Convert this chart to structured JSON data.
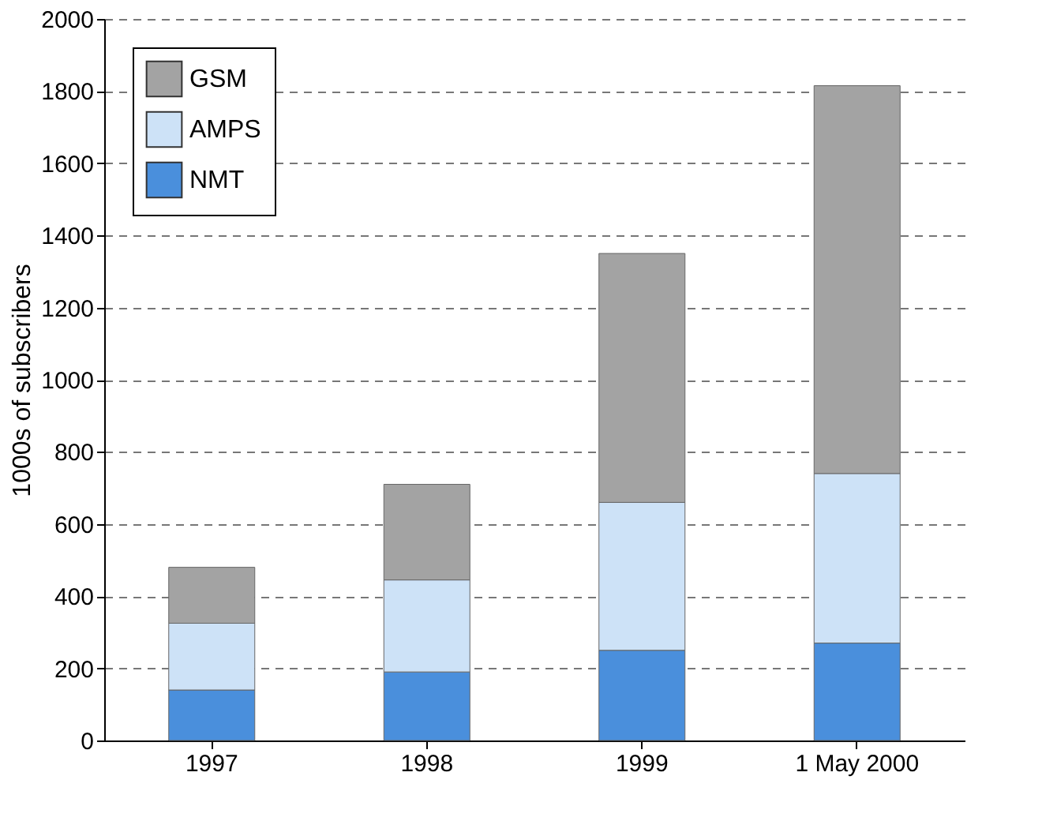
{
  "chart_data": {
    "type": "bar",
    "stacked": true,
    "ylabel": "1000s of subscribers",
    "categories": [
      "1997",
      "1998",
      "1999",
      "1 May 2000"
    ],
    "series": [
      {
        "name": "NMT",
        "color": "#4a8fdc",
        "values": [
          140,
          190,
          250,
          270
        ]
      },
      {
        "name": "AMPS",
        "color": "#cde2f7",
        "values": [
          185,
          255,
          410,
          470
        ]
      },
      {
        "name": "GSM",
        "color": "#a3a3a3",
        "values": [
          155,
          265,
          690,
          1075
        ]
      }
    ],
    "ylim": [
      0,
      2000
    ],
    "yticks": [
      0,
      200,
      400,
      600,
      800,
      1000,
      1200,
      1400,
      1600,
      1800,
      2000
    ],
    "grid": "y",
    "legend": "top left"
  }
}
